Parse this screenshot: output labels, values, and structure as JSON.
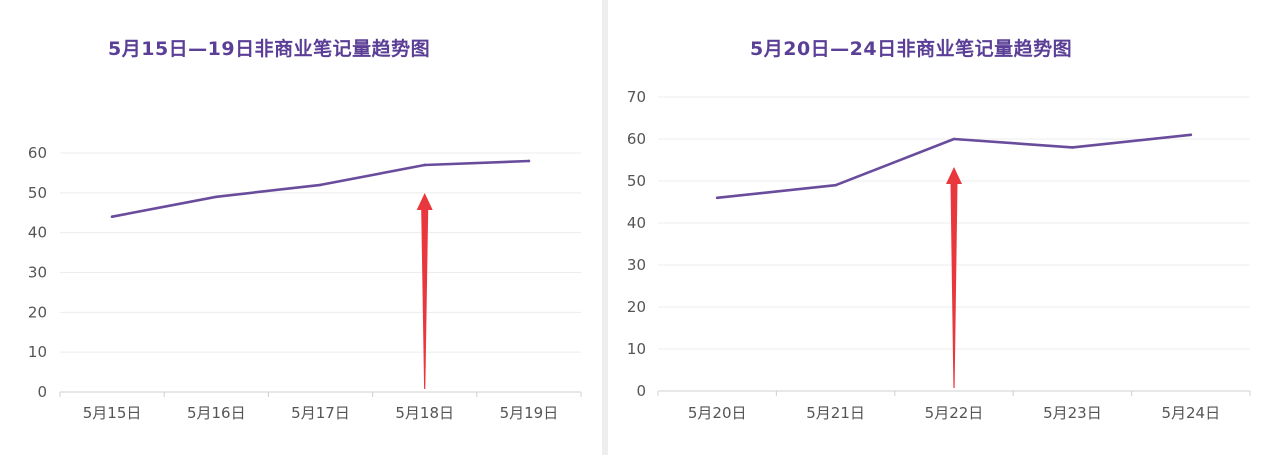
{
  "colors": {
    "line": "#6a4c9c",
    "title": "#5b3f96",
    "grid": "#ececec",
    "axis": "#d0d0d0",
    "tick_text": "#555555",
    "arrow": "#e8383d"
  },
  "chart_data": [
    {
      "type": "line",
      "title": "5月15日—19日非商业笔记量趋势图",
      "categories": [
        "5月15日",
        "5月16日",
        "5月17日",
        "5月18日",
        "5月19日"
      ],
      "values": [
        44,
        49,
        52,
        57,
        58
      ],
      "yticks": [
        0,
        10,
        20,
        30,
        40,
        50,
        60
      ],
      "ylim": [
        0,
        60
      ],
      "grid": true,
      "legend": "none",
      "annotation": {
        "type": "arrow",
        "category": "5月18日",
        "color": "#e8383d"
      }
    },
    {
      "type": "line",
      "title": "5月20日—24日非商业笔记量趋势图",
      "categories": [
        "5月20日",
        "5月21日",
        "5月22日",
        "5月23日",
        "5月24日"
      ],
      "values": [
        46,
        49,
        60,
        58,
        61
      ],
      "yticks": [
        0,
        10,
        20,
        30,
        40,
        50,
        60,
        70
      ],
      "ylim": [
        0,
        70
      ],
      "grid": true,
      "legend": "none",
      "annotation": {
        "type": "arrow",
        "category": "5月22日",
        "color": "#e8383d"
      }
    }
  ]
}
